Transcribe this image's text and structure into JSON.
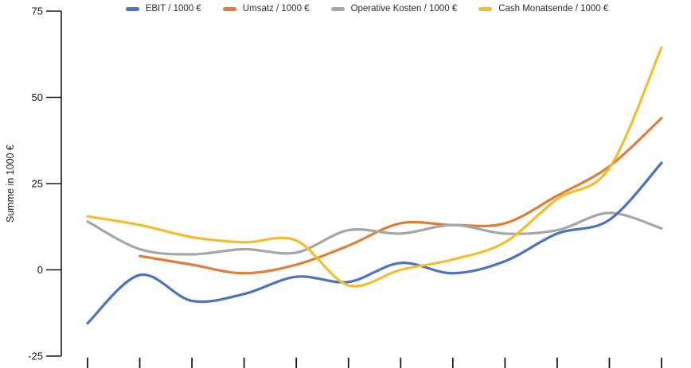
{
  "chart_data": {
    "type": "line",
    "title": "",
    "xlabel": "",
    "ylabel": "Summe in 1000 €",
    "ylim": [
      -25,
      75
    ],
    "y_ticks": [
      75,
      50,
      25,
      0,
      -25
    ],
    "x_tick_count": 12,
    "x_tick_labels": [
      "",
      "",
      "",
      "",
      "",
      "",
      "",
      "",
      "",
      "",
      "",
      ""
    ],
    "grid": false,
    "legend_position": "top-center",
    "smooth": true,
    "axis_color": "#1a1a1a",
    "series": [
      {
        "name": "EBIT / 1000 €",
        "color": "#4C72C0",
        "values": [
          -15.5,
          -1.5,
          -9,
          -7,
          -2,
          -3.5,
          2,
          -1,
          2.5,
          10.5,
          14.5,
          31
        ]
      },
      {
        "name": "Umsatz / 1000 €",
        "color": "#E07E38",
        "values": [
          null,
          4,
          1.5,
          -1,
          1.5,
          7,
          13.5,
          13,
          13.5,
          21.5,
          30,
          44
        ]
      },
      {
        "name": "Operative Kosten / 1000 €",
        "color": "#A6A6A6",
        "values": [
          14,
          6,
          4.5,
          6,
          5,
          11.5,
          10.5,
          13,
          10.5,
          11.5,
          16.5,
          12
        ]
      },
      {
        "name": "Cash Monatsende / 1000 €",
        "color": "#F2BE2E",
        "values": [
          15.5,
          13,
          9.5,
          8,
          8.5,
          -4.5,
          0,
          3,
          8,
          20.5,
          29.5,
          64.5
        ]
      }
    ]
  }
}
